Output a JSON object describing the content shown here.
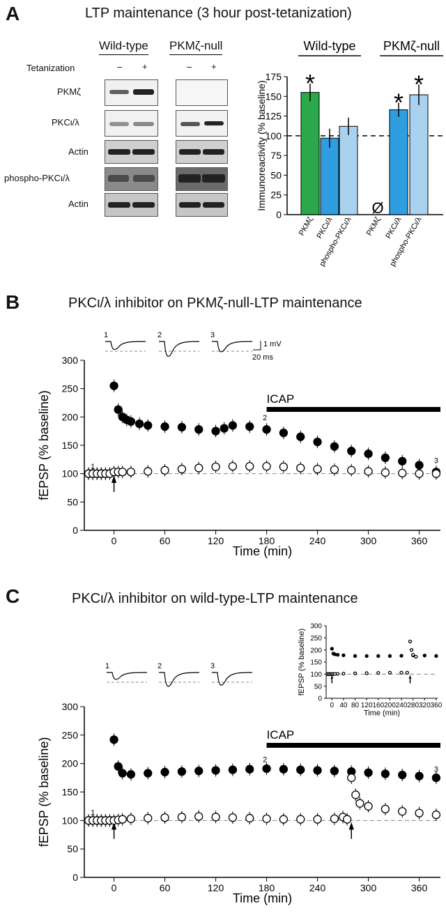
{
  "panels": {
    "A": {
      "letter": "A",
      "title": "LTP maintenance (3 hour post-tetanization)",
      "blot": {
        "group_labels": [
          "Wild-type",
          "PKMζ-null"
        ],
        "tetanization_label": "Tetanization",
        "lane_signs": [
          "–",
          "+",
          "–",
          "+"
        ],
        "row_labels": [
          "PKMζ",
          "PKCι/λ",
          "Actin",
          "phospho-PKCι/λ",
          "Actin"
        ]
      }
    },
    "B": {
      "letter": "B",
      "title": "PKCι/λ inhibitor on PKMζ-null-LTP maintenance"
    },
    "C": {
      "letter": "C",
      "title": "PKCι/λ inhibitor on wild-type-LTP maintenance"
    }
  },
  "chart_data": [
    {
      "id": "A-bar",
      "type": "bar",
      "group_labels": [
        "Wild-type",
        "PKMζ-null"
      ],
      "ylabel": "Immunoreactivity (% baseline)",
      "ylim": [
        0,
        175
      ],
      "yticks": [
        "0",
        "25",
        "50",
        "75",
        "100",
        "125",
        "150",
        "175"
      ],
      "reference_line": 100,
      "null_symbol": "Ø",
      "significance_mark": "*",
      "bars": [
        {
          "group": "Wild-type",
          "label": "PKMζ",
          "value": 155,
          "error": 11,
          "color": "#2aa84a",
          "sig": true
        },
        {
          "group": "Wild-type",
          "label": "PKCι/λ",
          "value": 97,
          "error": 12,
          "color": "#2f9ee0",
          "sig": false
        },
        {
          "group": "Wild-type",
          "label": "phospho-PKCι/λ",
          "value": 112,
          "error": 11,
          "color": "#a9d2f0",
          "sig": false
        },
        {
          "group": "PKMζ-null",
          "label": "PKMζ",
          "value": 0,
          "error": 0,
          "color": "#ffffff",
          "sig": false,
          "absent": true
        },
        {
          "group": "PKMζ-null",
          "label": "PKCι/λ",
          "value": 133,
          "error": 9,
          "color": "#2f9ee0",
          "sig": true
        },
        {
          "group": "PKMζ-null",
          "label": "phospho-PKCι/λ",
          "value": 152,
          "error": 13,
          "color": "#a9d2f0",
          "sig": true
        }
      ]
    },
    {
      "id": "B-plot",
      "type": "scatter",
      "xlabel": "Time (min)",
      "ylabel": "fEPSP (% baseline)",
      "xlim": [
        -35,
        385
      ],
      "ylim": [
        0,
        300
      ],
      "xticks": [
        "0",
        "60",
        "120",
        "180",
        "240",
        "300",
        "360"
      ],
      "yticks": [
        "0",
        "50",
        "100",
        "150",
        "200",
        "250",
        "300"
      ],
      "drug_label": "ICAP",
      "drug_range": [
        180,
        385
      ],
      "tetanus_times": [
        0
      ],
      "markers": [
        {
          "label": "1",
          "x": -25,
          "y": 106
        },
        {
          "label": "2",
          "x": 178,
          "y": 192
        },
        {
          "label": "3",
          "x": 380,
          "y": 116
        }
      ],
      "scale_bar": {
        "y_label": "1 mV",
        "x_label": "20 ms"
      },
      "trace_labels": [
        "1",
        "2",
        "3"
      ],
      "series": [
        {
          "name": "",
          "filled": true,
          "x": [
            -30,
            -25,
            -20,
            -15,
            -10,
            -5,
            0,
            5,
            10,
            15,
            20,
            30,
            40,
            60,
            80,
            100,
            120,
            130,
            140,
            160,
            180,
            200,
            220,
            240,
            260,
            280,
            300,
            320,
            340,
            360,
            380
          ],
          "y": [
            100,
            100,
            100,
            100,
            100,
            100,
            255,
            213,
            200,
            195,
            192,
            188,
            185,
            183,
            182,
            178,
            175,
            180,
            185,
            183,
            178,
            172,
            165,
            156,
            148,
            140,
            135,
            128,
            122,
            115,
            103
          ]
        },
        {
          "name": "",
          "filled": false,
          "x": [
            -30,
            -25,
            -20,
            -15,
            -10,
            -5,
            0,
            5,
            10,
            20,
            40,
            60,
            80,
            100,
            120,
            140,
            160,
            180,
            200,
            220,
            240,
            260,
            280,
            300,
            320,
            340,
            360,
            380
          ],
          "y": [
            100,
            100,
            100,
            100,
            100,
            100,
            103,
            103,
            103,
            103,
            104,
            106,
            108,
            110,
            112,
            113,
            113,
            113,
            112,
            110,
            108,
            107,
            106,
            104,
            102,
            101,
            100,
            100
          ]
        }
      ]
    },
    {
      "id": "C-plot",
      "type": "scatter",
      "xlabel": "Time (min)",
      "ylabel": "fEPSP (% baseline)",
      "xlim": [
        -35,
        385
      ],
      "ylim": [
        0,
        300
      ],
      "xticks": [
        "0",
        "60",
        "120",
        "180",
        "240",
        "300",
        "360"
      ],
      "yticks": [
        "0",
        "50",
        "100",
        "150",
        "200",
        "250",
        "300"
      ],
      "drug_label": "ICAP",
      "drug_range": [
        180,
        385
      ],
      "tetanus_times": [
        0,
        280
      ],
      "markers": [
        {
          "label": "1",
          "x": -25,
          "y": 107
        },
        {
          "label": "2",
          "x": 178,
          "y": 200
        },
        {
          "label": "3",
          "x": 380,
          "y": 183
        }
      ],
      "trace_labels": [
        "1",
        "2",
        "3"
      ],
      "series": [
        {
          "name": "",
          "filled": true,
          "x": [
            -30,
            -25,
            -20,
            -15,
            -10,
            -5,
            0,
            5,
            10,
            20,
            40,
            60,
            80,
            100,
            120,
            140,
            160,
            180,
            200,
            220,
            240,
            260,
            280,
            300,
            320,
            340,
            360,
            380
          ],
          "y": [
            100,
            100,
            100,
            100,
            100,
            100,
            242,
            195,
            183,
            181,
            183,
            185,
            186,
            187,
            188,
            189,
            190,
            191,
            190,
            189,
            188,
            187,
            186,
            184,
            182,
            180,
            178,
            175
          ]
        },
        {
          "name": "",
          "filled": false,
          "x": [
            -30,
            -25,
            -20,
            -15,
            -10,
            -5,
            0,
            5,
            10,
            20,
            40,
            60,
            80,
            100,
            120,
            140,
            160,
            180,
            200,
            220,
            240,
            260,
            270,
            275,
            280,
            285,
            290,
            300,
            320,
            340,
            360,
            380
          ],
          "y": [
            100,
            100,
            100,
            100,
            100,
            100,
            100,
            101,
            102,
            103,
            104,
            105,
            106,
            107,
            106,
            105,
            104,
            103,
            102,
            102,
            102,
            103,
            106,
            102,
            175,
            145,
            130,
            125,
            120,
            116,
            113,
            110
          ]
        }
      ]
    },
    {
      "id": "C-inset",
      "type": "scatter",
      "xlabel": "Time (min)",
      "ylabel": "fEPSP (% baseline)",
      "xlim": [
        -20,
        365
      ],
      "ylim": [
        0,
        300
      ],
      "xticks": [
        "0",
        "40",
        "80",
        "120",
        "160",
        "200",
        "240",
        "280",
        "320",
        "360"
      ],
      "yticks": [
        "0",
        "50",
        "100",
        "150",
        "200",
        "250",
        "300"
      ],
      "reference_line": 100,
      "tetanus_times": [
        0,
        270
      ],
      "series": [
        {
          "name": "",
          "filled": true,
          "x": [
            -15,
            -10,
            -5,
            0,
            5,
            10,
            20,
            40,
            80,
            120,
            160,
            200,
            240,
            280,
            320,
            360
          ],
          "y": [
            100,
            100,
            100,
            205,
            185,
            182,
            180,
            178,
            175,
            175,
            175,
            175,
            176,
            178,
            177,
            175
          ]
        },
        {
          "name": "",
          "filled": false,
          "x": [
            -15,
            -10,
            -5,
            0,
            5,
            10,
            20,
            40,
            80,
            120,
            160,
            200,
            240,
            260,
            270,
            275,
            280,
            290
          ],
          "y": [
            100,
            100,
            100,
            100,
            100,
            101,
            101,
            102,
            103,
            104,
            105,
            106,
            106,
            106,
            235,
            200,
            180,
            172
          ]
        }
      ]
    }
  ]
}
